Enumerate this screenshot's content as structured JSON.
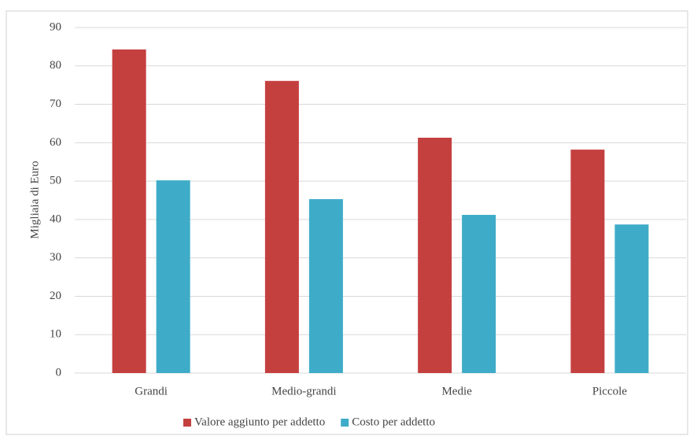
{
  "chart_data": {
    "type": "bar",
    "y_label": "Migliaia di Euro",
    "categories": [
      "Grandi",
      "Medio-grandi",
      "Medie",
      "Piccole"
    ],
    "series": [
      {
        "name": "Valore aggiunto per addetto",
        "color": "#c4403f",
        "values": [
          84.3,
          76.1,
          61.3,
          58.2
        ]
      },
      {
        "name": "Costo per addetto",
        "color": "#3eacc8",
        "values": [
          50.2,
          45.3,
          41.2,
          38.7
        ]
      }
    ],
    "ylim": [
      0,
      90
    ],
    "yticks": [
      0,
      10,
      20,
      30,
      40,
      50,
      60,
      70,
      80,
      90
    ],
    "grid": true,
    "legend": "bottom"
  }
}
